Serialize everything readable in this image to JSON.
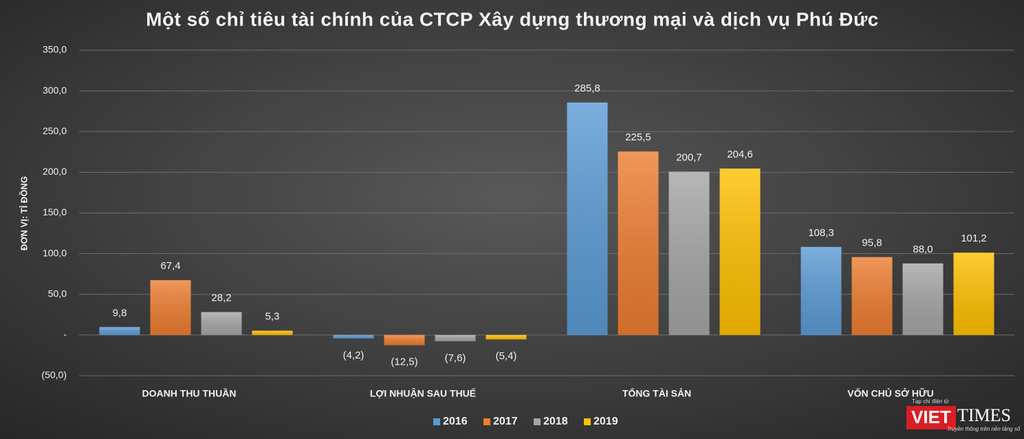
{
  "chart_data": {
    "type": "bar",
    "title": "Một số chỉ tiêu tài chính của CTCP Xây dựng thương mại và dịch vụ Phú Đức",
    "y_label": "ĐƠN VỊ: TỈ ĐỒNG",
    "categories": [
      "DOANH THU THUẦN",
      "LỢI NHUẬN SAU THUẾ",
      "TỔNG TÀI SẢN",
      "VỐN CHỦ SỞ HỮU"
    ],
    "series": [
      {
        "name": "2016",
        "color": "#5b9bd5",
        "values": [
          9.8,
          -4.2,
          285.8,
          108.3
        ],
        "value_labels": [
          "9,8",
          "(4,2)",
          "285,8",
          "108,3"
        ]
      },
      {
        "name": "2017",
        "color": "#ed7d31",
        "values": [
          67.4,
          -12.5,
          225.5,
          95.8
        ],
        "value_labels": [
          "67,4",
          "(12,5)",
          "225,5",
          "95,8"
        ]
      },
      {
        "name": "2018",
        "color": "#a5a5a5",
        "values": [
          28.2,
          -7.6,
          200.7,
          88.0
        ],
        "value_labels": [
          "28,2",
          "(7,6)",
          "200,7",
          "88,0"
        ]
      },
      {
        "name": "2019",
        "color": "#ffc000",
        "values": [
          5.3,
          -5.4,
          204.6,
          101.2
        ],
        "value_labels": [
          "5,3",
          "(5,4)",
          "204,6",
          "101,2"
        ]
      }
    ],
    "ylim": [
      -50,
      350
    ],
    "yticks": [
      {
        "value": -50,
        "label": "(50,0)"
      },
      {
        "value": 0,
        "label": "-"
      },
      {
        "value": 50,
        "label": "50,0"
      },
      {
        "value": 100,
        "label": "100,0"
      },
      {
        "value": 150,
        "label": "150,0"
      },
      {
        "value": 200,
        "label": "200,0"
      },
      {
        "value": 250,
        "label": "250,0"
      },
      {
        "value": 300,
        "label": "300,0"
      },
      {
        "value": 350,
        "label": "350,0"
      }
    ],
    "grid": true,
    "legend": "bottom"
  },
  "logo": {
    "top": "Tạp chí điện tử",
    "part1": "VIET",
    "part2": "TIMES",
    "tagline": "Truyền thông trên nền tảng số"
  }
}
